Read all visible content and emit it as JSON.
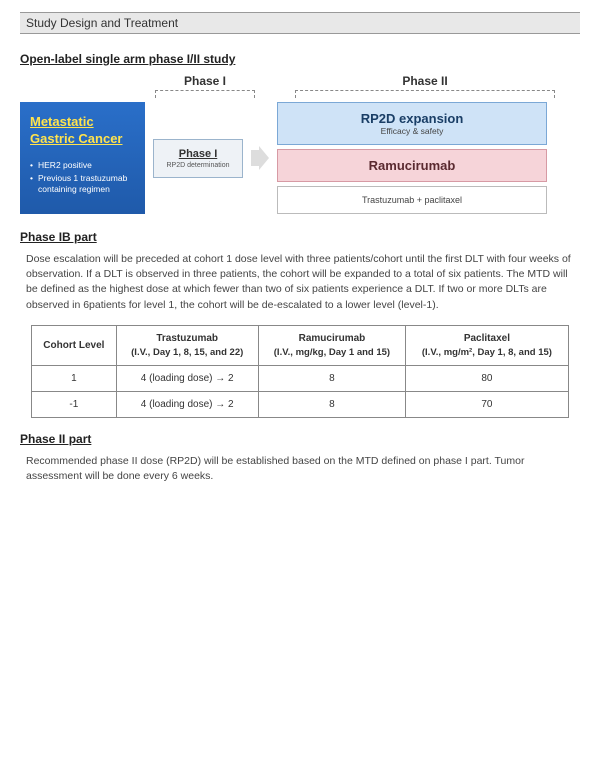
{
  "header": {
    "title": "Study Design and Treatment"
  },
  "sections": {
    "open_label": "Open-label single arm phase I/II study",
    "phase1b": "Phase IB part",
    "phase2": "Phase II part"
  },
  "phase_labels": {
    "p1": "Phase I",
    "p2": "Phase II"
  },
  "diagram": {
    "blue_box": {
      "title": "Metastatic Gastric Cancer",
      "bullets": [
        "HER2 positive",
        "Previous 1 trastuzumab containing regimen"
      ]
    },
    "phase1_box": {
      "title": "Phase I",
      "sub": "RP2D determination"
    },
    "rp2d_box": {
      "title": "RP2D expansion",
      "sub": "Efficacy & safety"
    },
    "ram_box": "Ramucirumab",
    "tp_box": "Trastuzumab  +  paclitaxel"
  },
  "phase1b_text": "Dose escalation will be preceded at cohort 1 dose level with three patients/cohort until the first DLT with four weeks of observation. If a DLT is observed in three patients, the cohort will be expanded to a total of six patients. The MTD will be defined as the highest dose at which fewer than two of six patients experience a DLT. If two or more DLTs are observed in 6patients for level 1, the cohort will be de-escalated to a lower level (level-1).",
  "dose_table": {
    "headers": {
      "cohort": "Cohort Level",
      "tras": "Trastuzumab",
      "tras_sub": "(I.V., Day 1, 8, 15, and 22)",
      "ram": "Ramucirumab",
      "ram_sub": "(I.V., mg/kg, Day 1 and 15)",
      "pac": "Paclitaxel",
      "pac_sub": "(I.V., mg/m², Day 1, 8, and 15)"
    },
    "rows": [
      {
        "level": "1",
        "tras": "4 (loading dose) → 2",
        "ram": "8",
        "pac": "80"
      },
      {
        "level": "-1",
        "tras": "4 (loading dose) → 2",
        "ram": "8",
        "pac": "70"
      }
    ]
  },
  "phase2_text": "Recommended phase II dose (RP2D) will be established based on the MTD defined on phase I part. Tumor assessment will be done every 6 weeks.",
  "colors": {
    "blue_box_bg": "#2a6fc9",
    "blue_box_title": "#ffe34d",
    "rp2d_bg": "#cfe3f7",
    "ram_bg": "#f6d4d9",
    "header_bg": "#e8e8e8"
  }
}
